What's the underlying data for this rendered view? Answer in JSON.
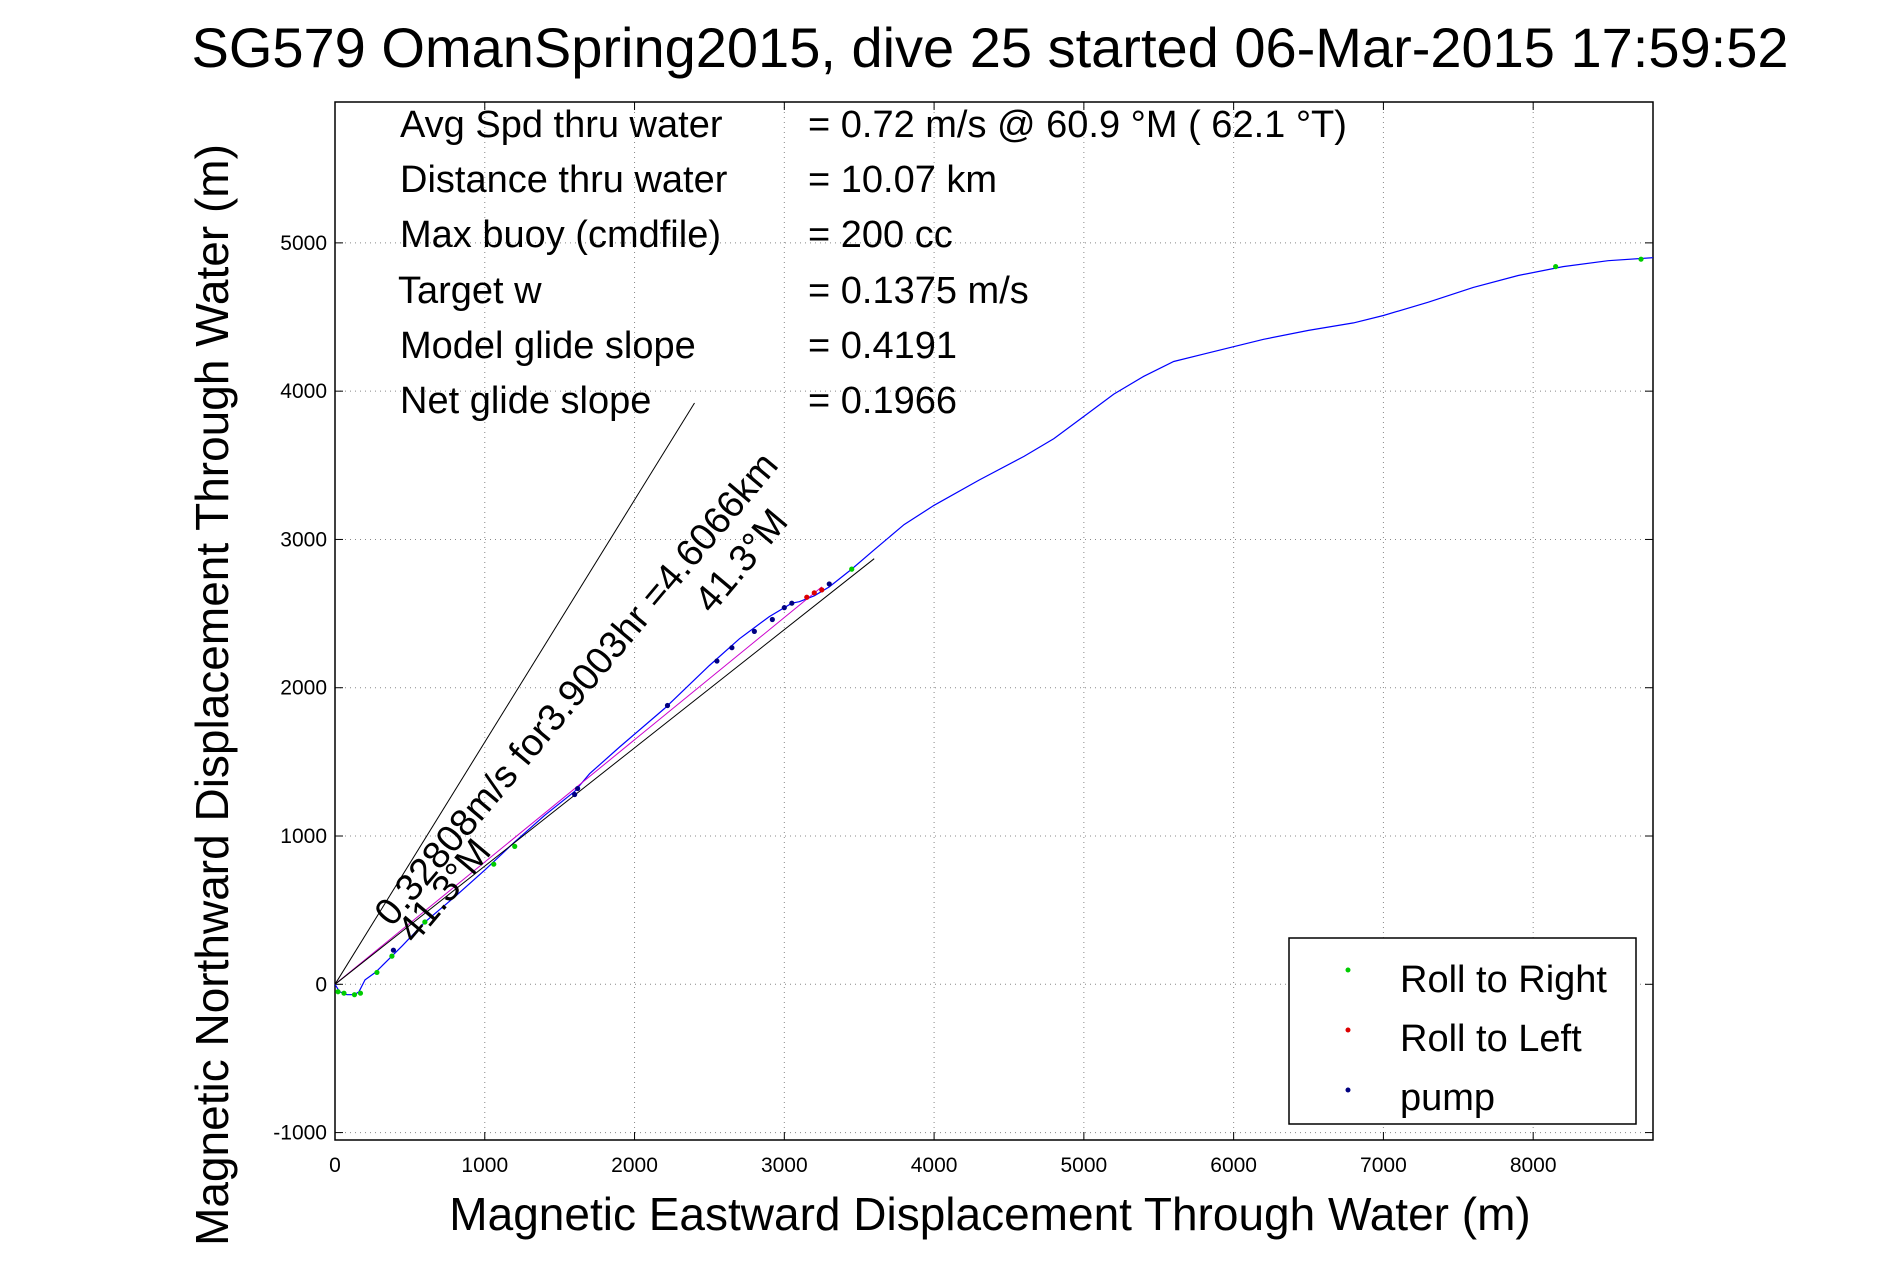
{
  "chart_data": {
    "type": "line",
    "title": "SG579 OmanSpring2015, dive 25 started 06-Mar-2015 17:59:52",
    "xlabel": "Magnetic Eastward Displacement Through Water (m)",
    "ylabel": "Magnetic Northward Displacement Through Water (m)",
    "xlim": [
      0,
      8800
    ],
    "ylim": [
      -1050,
      5950
    ],
    "xticks": [
      0,
      1000,
      2000,
      3000,
      4000,
      5000,
      6000,
      7000,
      8000
    ],
    "yticks": [
      -1000,
      0,
      1000,
      2000,
      3000,
      4000,
      5000
    ],
    "grid": true,
    "legend_position": "bottom-right",
    "legend": [
      {
        "label": "Roll to Right",
        "color": "#00cc00"
      },
      {
        "label": "Roll to Left",
        "color": "#dd0000"
      },
      {
        "label": "pump",
        "color": "#000080"
      }
    ],
    "annotations": [
      {
        "label": "Avg Spd thru water",
        "value": "=  0.72 m/s @  60.9 °M ( 62.1 °T)"
      },
      {
        "label": "Distance thru water",
        "value": "= 10.07 km"
      },
      {
        "label": "Max buoy (cmdfile)",
        "value": "= 200 cc"
      },
      {
        "label": "Target w",
        "value": "= 0.1375 m/s"
      },
      {
        "label": "Model glide slope",
        "value": "= 0.4191"
      },
      {
        "label": "Net glide slope",
        "value": "= 0.1966"
      }
    ],
    "track_labels": {
      "current": "0.32808m/s for3.9003hr =4.6066km",
      "heading_start": "41.3°M",
      "heading_end": "41.3°M"
    },
    "series": [
      {
        "style": "blue-line",
        "color": "#0000ff",
        "x": [
          0,
          30,
          80,
          130,
          160,
          200,
          270,
          350,
          450,
          600,
          800,
          1000,
          1200,
          1400,
          1600,
          1700,
          1900,
          2200,
          2500,
          2700,
          2900,
          3050,
          3100,
          3200,
          3300,
          3450,
          3600,
          3800,
          4000,
          4300,
          4600,
          4800,
          5000,
          5200,
          5400,
          5600,
          5800,
          6000,
          6200,
          6500,
          6800,
          7000,
          7300,
          7600,
          7900,
          8200,
          8500,
          8800
        ],
        "y": [
          0,
          -50,
          -70,
          -70,
          -50,
          30,
          80,
          160,
          260,
          420,
          590,
          770,
          960,
          1140,
          1300,
          1420,
          1600,
          1860,
          2150,
          2330,
          2480,
          2570,
          2580,
          2620,
          2680,
          2800,
          2930,
          3100,
          3230,
          3400,
          3560,
          3680,
          3830,
          3980,
          4100,
          4200,
          4250,
          4300,
          4350,
          4410,
          4460,
          4510,
          4600,
          4700,
          4780,
          4840,
          4880,
          4900
        ]
      },
      {
        "style": "magenta-line",
        "color": "#cc00cc",
        "x": [
          0,
          3250
        ],
        "y": [
          0,
          2680
        ]
      },
      {
        "style": "black-line",
        "color": "#000000",
        "x": [
          0,
          2400
        ],
        "y": [
          0,
          3920
        ]
      },
      {
        "style": "black-line",
        "color": "#000000",
        "x": [
          0,
          3600
        ],
        "y": [
          0,
          2870
        ]
      },
      {
        "style": "marker",
        "name": "Roll to Right",
        "color": "#00cc00",
        "x": [
          20,
          60,
          130,
          170,
          280,
          380,
          600,
          1060,
          1200,
          3450,
          8150,
          8720
        ],
        "y": [
          -50,
          -60,
          -70,
          -60,
          80,
          190,
          420,
          810,
          930,
          2800,
          4840,
          4890
        ]
      },
      {
        "style": "marker",
        "name": "Roll to Left",
        "color": "#dd0000",
        "x": [
          3150,
          3200,
          3250
        ],
        "y": [
          2610,
          2640,
          2660
        ]
      },
      {
        "style": "marker",
        "name": "pump",
        "color": "#000080",
        "x": [
          390,
          1600,
          1620,
          2220,
          2550,
          2650,
          2800,
          2920,
          3000,
          3050,
          3300
        ],
        "y": [
          230,
          1280,
          1320,
          1880,
          2180,
          2270,
          2380,
          2460,
          2540,
          2570,
          2700
        ]
      }
    ]
  }
}
